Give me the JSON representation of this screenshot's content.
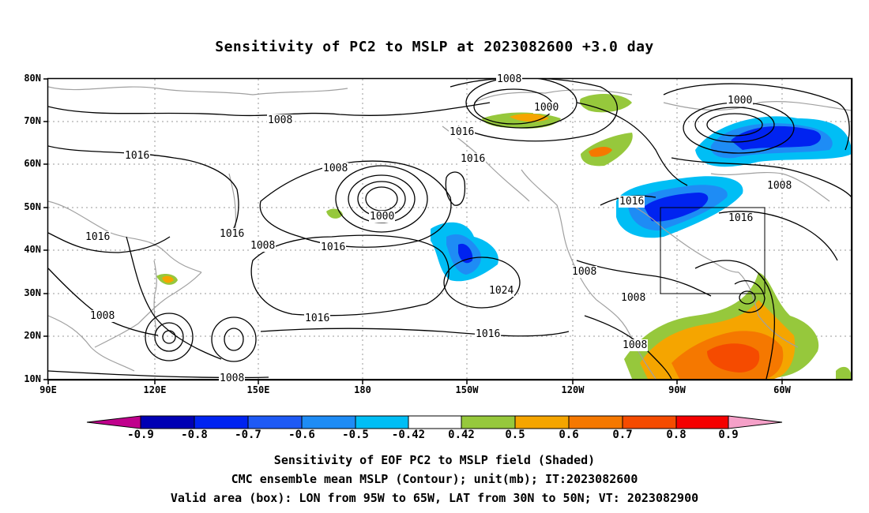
{
  "title": "Sensitivity of PC2 to MSLP at 2023082600 +3.0 day",
  "lat_labels": [
    "80N",
    "70N",
    "60N",
    "50N",
    "40N",
    "30N",
    "20N",
    "10N"
  ],
  "lon_labels": [
    "90E",
    "120E",
    "150E",
    "180",
    "150W",
    "120W",
    "90W",
    "60W"
  ],
  "contour_labels": [
    "1008",
    "1000",
    "1008",
    "1016",
    "1016",
    "1016",
    "1008",
    "1000",
    "1016",
    "1016",
    "1008",
    "1016",
    "1000",
    "1008",
    "1016",
    "1016",
    "1016",
    "1024",
    "1008",
    "1008",
    "1016",
    "1008",
    "1008",
    "1008"
  ],
  "colorbar": {
    "labels": [
      "-0.9",
      "-0.8",
      "-0.7",
      "-0.6",
      "-0.5",
      "-0.42",
      "0.42",
      "0.5",
      "0.6",
      "0.7",
      "0.8",
      "0.9"
    ],
    "colors": [
      "#c0008c",
      "#0000b4",
      "#0023f0",
      "#1e5af5",
      "#1e8cf5",
      "#00bef5",
      "#ffffff",
      "#96c83c",
      "#f5a500",
      "#f57800",
      "#f54b00",
      "#f50000",
      "#f5a0c8"
    ]
  },
  "captions": [
    "Sensitivity of EOF PC2 to MSLP field (Shaded)",
    "CMC ensemble mean MSLP (Contour); unit(mb); IT:2023082600",
    "Valid area (box): LON from 95W to 65W, LAT from 30N to 50N; VT: 2023082900"
  ]
}
